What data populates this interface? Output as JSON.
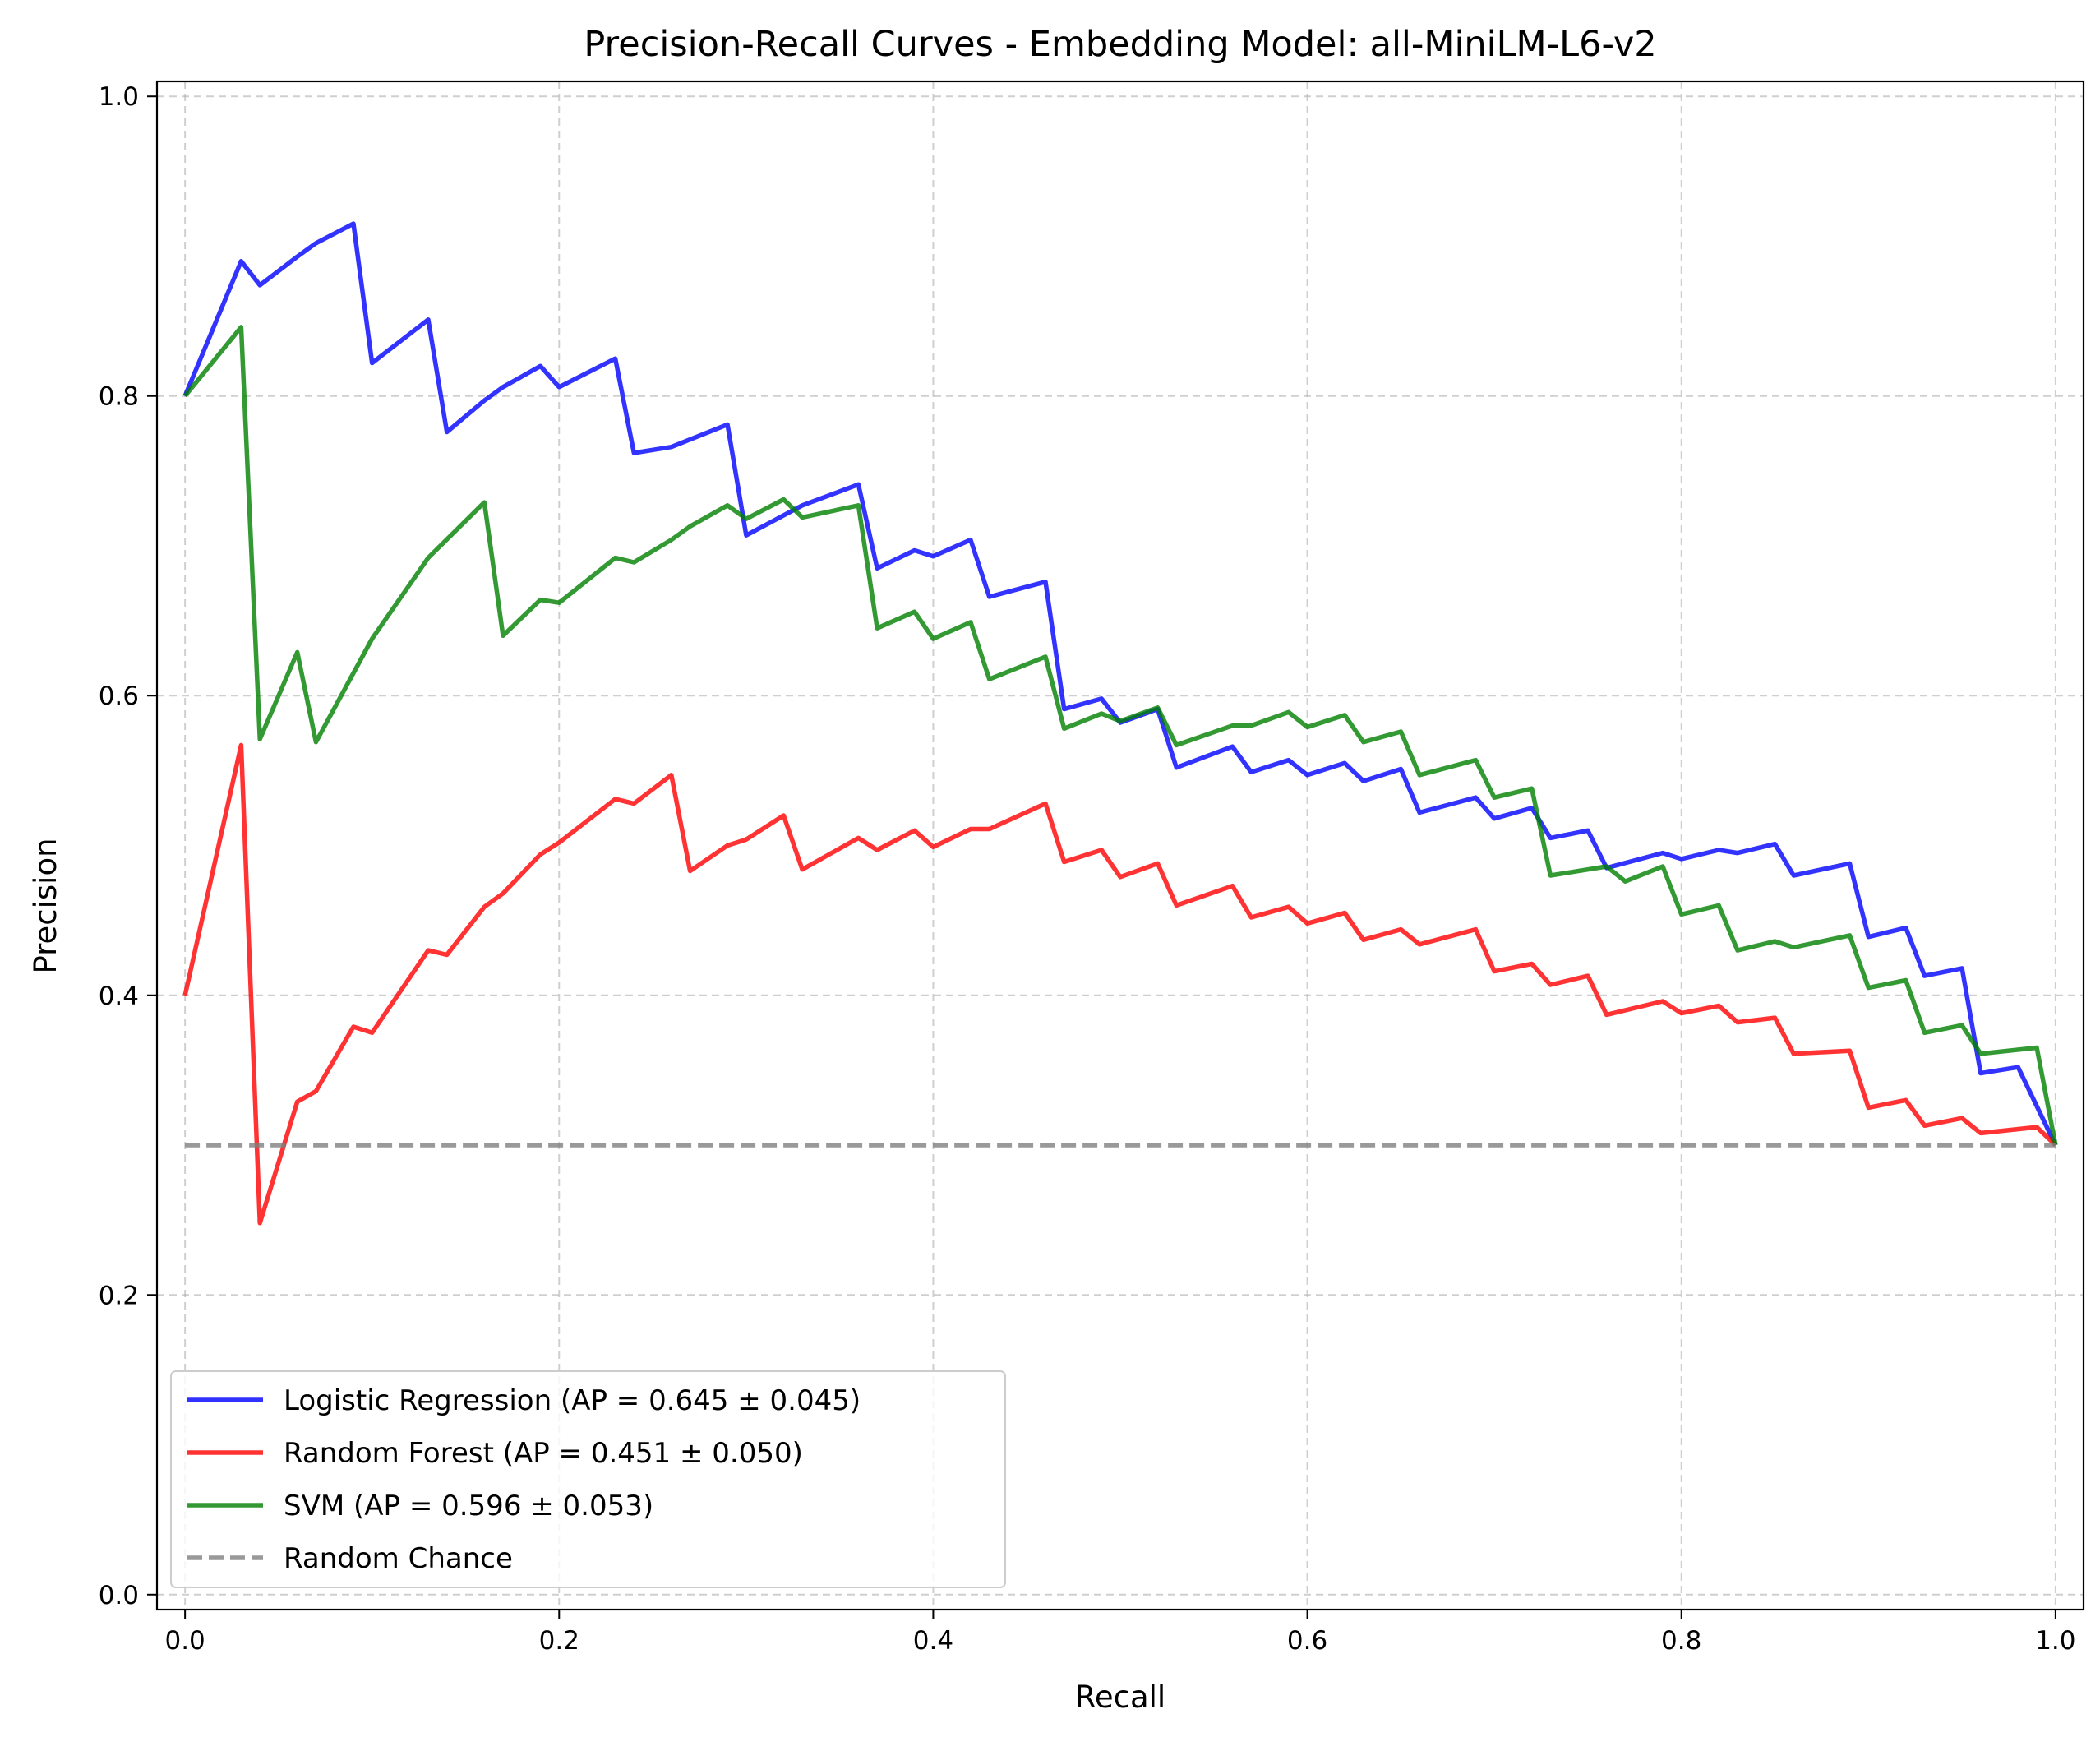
{
  "chart_data": {
    "type": "line",
    "title": "Precision-Recall Curves - Embedding Model: all-MiniLM-L6-v2",
    "xlabel": "Recall",
    "ylabel": "Precision",
    "xlim": [
      -0.015,
      1.015
    ],
    "ylim": [
      -0.01,
      1.01
    ],
    "xticks": [
      0.0,
      0.2,
      0.4,
      0.6,
      0.8,
      1.0
    ],
    "yticks": [
      0.0,
      0.2,
      0.4,
      0.6,
      0.8,
      1.0
    ],
    "xtick_labels": [
      "0.0",
      "0.2",
      "0.4",
      "0.6",
      "0.8",
      "1.0"
    ],
    "ytick_labels": [
      "0.0",
      "0.2",
      "0.4",
      "0.6",
      "0.8",
      "1.0"
    ],
    "grid": true,
    "legend_position": "lower-left",
    "series": [
      {
        "name": "Logistic Regression (AP = 0.645 ± 0.045)",
        "color": "#0000ff",
        "dash": "solid",
        "points": [
          [
            0.0,
            0.8
          ],
          [
            0.03,
            0.89
          ],
          [
            0.04,
            0.874
          ],
          [
            0.06,
            0.893
          ],
          [
            0.07,
            0.902
          ],
          [
            0.09,
            0.915
          ],
          [
            0.1,
            0.822
          ],
          [
            0.13,
            0.851
          ],
          [
            0.14,
            0.776
          ],
          [
            0.16,
            0.797
          ],
          [
            0.17,
            0.806
          ],
          [
            0.19,
            0.82
          ],
          [
            0.2,
            0.806
          ],
          [
            0.23,
            0.825
          ],
          [
            0.24,
            0.762
          ],
          [
            0.26,
            0.766
          ],
          [
            0.27,
            0.771
          ],
          [
            0.29,
            0.781
          ],
          [
            0.3,
            0.707
          ],
          [
            0.33,
            0.727
          ],
          [
            0.36,
            0.741
          ],
          [
            0.37,
            0.685
          ],
          [
            0.39,
            0.697
          ],
          [
            0.4,
            0.693
          ],
          [
            0.42,
            0.704
          ],
          [
            0.43,
            0.666
          ],
          [
            0.46,
            0.676
          ],
          [
            0.47,
            0.591
          ],
          [
            0.49,
            0.598
          ],
          [
            0.5,
            0.582
          ],
          [
            0.52,
            0.591
          ],
          [
            0.53,
            0.552
          ],
          [
            0.56,
            0.566
          ],
          [
            0.57,
            0.549
          ],
          [
            0.59,
            0.557
          ],
          [
            0.6,
            0.547
          ],
          [
            0.62,
            0.555
          ],
          [
            0.63,
            0.543
          ],
          [
            0.65,
            0.551
          ],
          [
            0.66,
            0.522
          ],
          [
            0.69,
            0.532
          ],
          [
            0.7,
            0.518
          ],
          [
            0.72,
            0.525
          ],
          [
            0.73,
            0.505
          ],
          [
            0.75,
            0.51
          ],
          [
            0.76,
            0.485
          ],
          [
            0.79,
            0.495
          ],
          [
            0.8,
            0.491
          ],
          [
            0.82,
            0.497
          ],
          [
            0.83,
            0.495
          ],
          [
            0.85,
            0.501
          ],
          [
            0.86,
            0.48
          ],
          [
            0.89,
            0.488
          ],
          [
            0.9,
            0.439
          ],
          [
            0.92,
            0.445
          ],
          [
            0.93,
            0.413
          ],
          [
            0.95,
            0.418
          ],
          [
            0.96,
            0.348
          ],
          [
            0.98,
            0.352
          ],
          [
            1.0,
            0.3
          ]
        ]
      },
      {
        "name": "Random Forest (AP = 0.451 ± 0.050)",
        "color": "#ff0000",
        "dash": "solid",
        "points": [
          [
            0.0,
            0.4
          ],
          [
            0.03,
            0.567
          ],
          [
            0.04,
            0.248
          ],
          [
            0.06,
            0.329
          ],
          [
            0.07,
            0.336
          ],
          [
            0.09,
            0.379
          ],
          [
            0.1,
            0.375
          ],
          [
            0.13,
            0.43
          ],
          [
            0.14,
            0.427
          ],
          [
            0.16,
            0.459
          ],
          [
            0.17,
            0.468
          ],
          [
            0.19,
            0.494
          ],
          [
            0.2,
            0.502
          ],
          [
            0.23,
            0.531
          ],
          [
            0.24,
            0.528
          ],
          [
            0.26,
            0.547
          ],
          [
            0.27,
            0.483
          ],
          [
            0.29,
            0.5
          ],
          [
            0.3,
            0.504
          ],
          [
            0.32,
            0.52
          ],
          [
            0.33,
            0.484
          ],
          [
            0.36,
            0.505
          ],
          [
            0.37,
            0.497
          ],
          [
            0.39,
            0.51
          ],
          [
            0.4,
            0.499
          ],
          [
            0.42,
            0.511
          ],
          [
            0.43,
            0.511
          ],
          [
            0.46,
            0.528
          ],
          [
            0.47,
            0.489
          ],
          [
            0.49,
            0.497
          ],
          [
            0.5,
            0.479
          ],
          [
            0.52,
            0.488
          ],
          [
            0.53,
            0.46
          ],
          [
            0.56,
            0.473
          ],
          [
            0.57,
            0.452
          ],
          [
            0.59,
            0.459
          ],
          [
            0.6,
            0.448
          ],
          [
            0.62,
            0.455
          ],
          [
            0.63,
            0.437
          ],
          [
            0.65,
            0.444
          ],
          [
            0.66,
            0.434
          ],
          [
            0.69,
            0.444
          ],
          [
            0.7,
            0.416
          ],
          [
            0.72,
            0.421
          ],
          [
            0.73,
            0.407
          ],
          [
            0.75,
            0.413
          ],
          [
            0.76,
            0.387
          ],
          [
            0.79,
            0.396
          ],
          [
            0.8,
            0.388
          ],
          [
            0.82,
            0.393
          ],
          [
            0.83,
            0.382
          ],
          [
            0.85,
            0.385
          ],
          [
            0.86,
            0.361
          ],
          [
            0.89,
            0.363
          ],
          [
            0.9,
            0.325
          ],
          [
            0.92,
            0.33
          ],
          [
            0.93,
            0.313
          ],
          [
            0.95,
            0.318
          ],
          [
            0.96,
            0.308
          ],
          [
            0.99,
            0.312
          ],
          [
            1.0,
            0.3
          ]
        ]
      },
      {
        "name": "SVM (AP = 0.596 ± 0.053)",
        "color": "#008000",
        "dash": "solid",
        "points": [
          [
            0.0,
            0.8
          ],
          [
            0.03,
            0.846
          ],
          [
            0.04,
            0.571
          ],
          [
            0.06,
            0.629
          ],
          [
            0.07,
            0.569
          ],
          [
            0.1,
            0.638
          ],
          [
            0.13,
            0.692
          ],
          [
            0.16,
            0.729
          ],
          [
            0.17,
            0.64
          ],
          [
            0.19,
            0.664
          ],
          [
            0.2,
            0.662
          ],
          [
            0.23,
            0.692
          ],
          [
            0.24,
            0.689
          ],
          [
            0.26,
            0.704
          ],
          [
            0.27,
            0.713
          ],
          [
            0.29,
            0.727
          ],
          [
            0.3,
            0.718
          ],
          [
            0.32,
            0.731
          ],
          [
            0.33,
            0.719
          ],
          [
            0.36,
            0.727
          ],
          [
            0.37,
            0.645
          ],
          [
            0.39,
            0.656
          ],
          [
            0.4,
            0.638
          ],
          [
            0.42,
            0.649
          ],
          [
            0.43,
            0.611
          ],
          [
            0.46,
            0.626
          ],
          [
            0.47,
            0.578
          ],
          [
            0.49,
            0.588
          ],
          [
            0.5,
            0.583
          ],
          [
            0.52,
            0.592
          ],
          [
            0.53,
            0.567
          ],
          [
            0.56,
            0.58
          ],
          [
            0.57,
            0.58
          ],
          [
            0.59,
            0.589
          ],
          [
            0.6,
            0.579
          ],
          [
            0.62,
            0.587
          ],
          [
            0.63,
            0.569
          ],
          [
            0.65,
            0.576
          ],
          [
            0.66,
            0.547
          ],
          [
            0.69,
            0.557
          ],
          [
            0.7,
            0.532
          ],
          [
            0.72,
            0.538
          ],
          [
            0.73,
            0.48
          ],
          [
            0.76,
            0.486
          ],
          [
            0.77,
            0.476
          ],
          [
            0.79,
            0.486
          ],
          [
            0.8,
            0.454
          ],
          [
            0.82,
            0.46
          ],
          [
            0.83,
            0.43
          ],
          [
            0.85,
            0.436
          ],
          [
            0.86,
            0.432
          ],
          [
            0.89,
            0.44
          ],
          [
            0.9,
            0.405
          ],
          [
            0.92,
            0.41
          ],
          [
            0.93,
            0.375
          ],
          [
            0.95,
            0.38
          ],
          [
            0.96,
            0.361
          ],
          [
            0.99,
            0.365
          ],
          [
            1.0,
            0.3
          ]
        ]
      },
      {
        "name": "Random Chance",
        "color": "#808080",
        "dash": "dashed",
        "points": [
          [
            0.0,
            0.3
          ],
          [
            1.0,
            0.3
          ]
        ]
      }
    ]
  }
}
